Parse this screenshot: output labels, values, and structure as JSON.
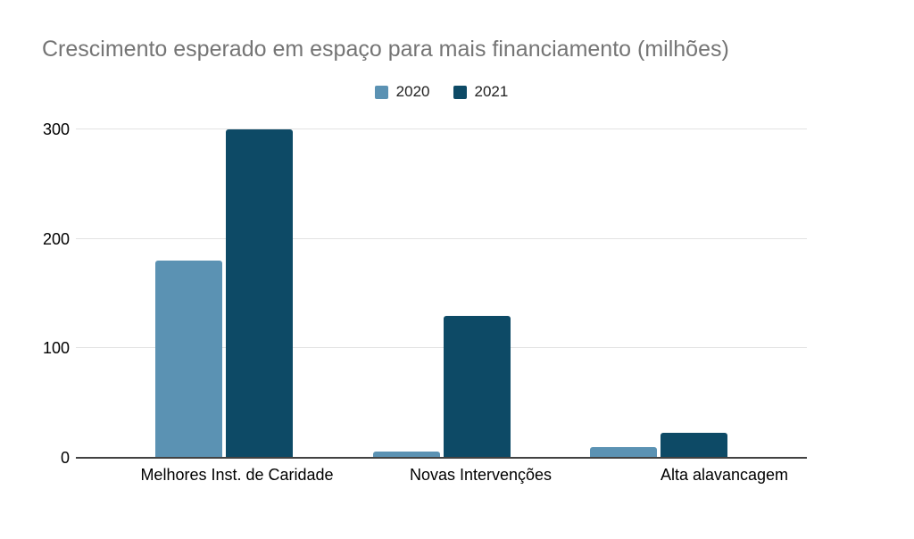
{
  "chart_data": {
    "type": "bar",
    "title": "Crescimento esperado em espaço para mais financiamento (milhões)",
    "categories": [
      "Melhores Inst. de Caridade",
      "Novas Intervenções",
      "Alta alavancagem"
    ],
    "series": [
      {
        "name": "2020",
        "color": "#5B92B3",
        "values": [
          180,
          6,
          10
        ]
      },
      {
        "name": "2021",
        "color": "#0D4A66",
        "values": [
          300,
          130,
          23
        ]
      }
    ],
    "xlabel": "",
    "ylabel": "",
    "ylim": [
      0,
      300
    ],
    "yticks": [
      0,
      100,
      200,
      300
    ],
    "legend_position": "top",
    "grid": true,
    "colors": {
      "background": "#ffffff",
      "title_text": "#757575",
      "tick_text": "#000000",
      "legend_text": "#212121",
      "gridline": "#e2e2e2",
      "axis_line": "#424242"
    }
  }
}
